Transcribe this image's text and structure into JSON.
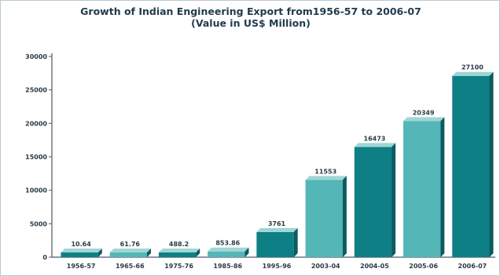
{
  "chart_data": {
    "type": "bar",
    "title": "Growth of Indian Engineering Export from1956-57 to 2006-07",
    "subtitle": "(Value in US$ Million)",
    "xlabel": "",
    "ylabel": "",
    "categories": [
      "1956-57",
      "1965-66",
      "1975-76",
      "1985-86",
      "1995-96",
      "2003-04",
      "2004-05",
      "2005-06",
      "2006-07"
    ],
    "values": [
      10.64,
      61.76,
      488.2,
      853.86,
      3761,
      11553,
      16473,
      20349,
      27100
    ],
    "data_labels": [
      "10.64",
      "61.76",
      "488.2",
      "853.86",
      "3761",
      "11553",
      "16473",
      "20349",
      "27100"
    ],
    "y_ticks": [
      0,
      5000,
      10000,
      15000,
      20000,
      25000,
      30000
    ],
    "ylim": [
      0,
      30000
    ],
    "grid": false,
    "legend": "none",
    "colors": {
      "bar_front": "#0f7f86",
      "bar_front_alt": "#54b6b6",
      "bar_top": "#9fd6d6",
      "bar_side": "#0a5a60",
      "axis": "#4a5a66"
    }
  }
}
